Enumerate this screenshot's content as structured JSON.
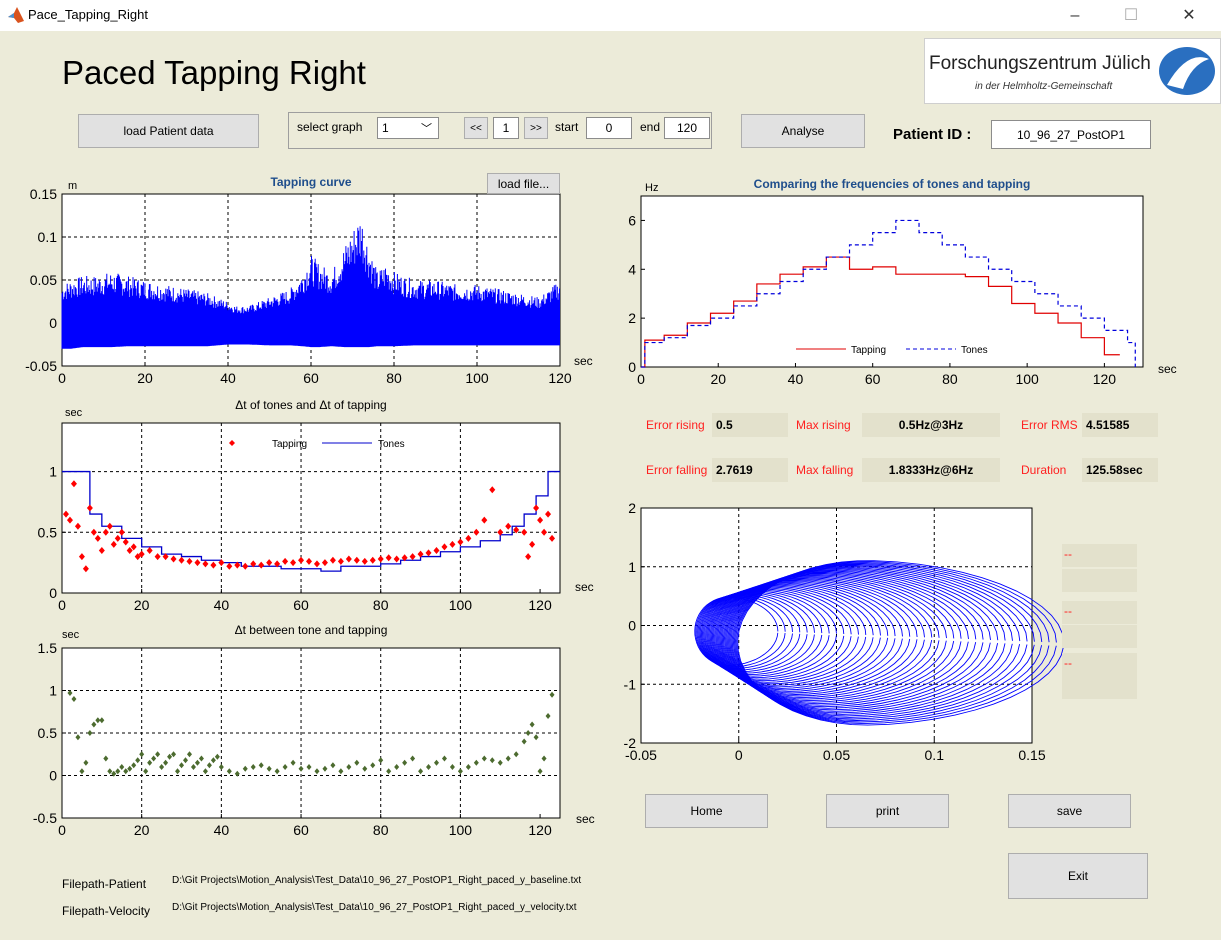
{
  "window": {
    "title": "Pace_Tapping_Right",
    "minimize": "–",
    "maximize": "☐",
    "close": "✕"
  },
  "header": {
    "title": "Paced Tapping Right",
    "logo_line1": "Forschungszentrum Jülich",
    "logo_line2": "in der Helmholtz-Gemeinschaft"
  },
  "toolbar": {
    "load_patient": "load Patient data",
    "select_graph_label": "select graph",
    "select_graph_value": "1",
    "prev": "<<",
    "page": "1",
    "next": ">>",
    "start_label": "start",
    "start_value": "0",
    "end_label": "end",
    "end_value": "120",
    "analyse": "Analyse",
    "patient_id_label": "Patient  ID :",
    "patient_id_value": "10_96_27_PostOP1"
  },
  "stats": {
    "error_rising_label": "Error rising",
    "error_rising_value": "0.5",
    "max_rising_label": "Max rising",
    "max_rising_value": "0.5Hz@3Hz",
    "error_rms_label": "Error RMS",
    "error_rms_value": "4.51585",
    "error_falling_label": "Error falling",
    "error_falling_value": "2.7619",
    "max_falling_label": "Max falling",
    "max_falling_value": "1.8333Hz@6Hz",
    "duration_label": "Duration",
    "duration_value": "125.58sec",
    "dash1": "--",
    "dash2": "--",
    "dash3": "--"
  },
  "buttons": {
    "home": "Home",
    "print": "print",
    "save": "save",
    "exit": "Exit",
    "load_file": "load file..."
  },
  "filepaths": {
    "patient_label": "Filepath-Patient",
    "patient_value": "D:\\Git Projects\\Motion_Analysis\\Test_Data\\10_96_27_PostOP1_Right_paced_y_baseline.txt",
    "velocity_label": "Filepath-Velocity",
    "velocity_value": "D:\\Git Projects\\Motion_Analysis\\Test_Data\\10_96_27_PostOP1_Right_paced_y_velocity.txt"
  },
  "chart_data": [
    {
      "type": "line",
      "title": "Tapping curve",
      "ylabel": "m",
      "xlabel": "sec",
      "xlim": [
        0,
        120
      ],
      "ylim": [
        -0.05,
        0.15
      ],
      "xticks": [
        "0",
        "20",
        "40",
        "60",
        "80",
        "100",
        "120"
      ],
      "yticks": [
        "-0.05",
        "0",
        "0.05",
        "0.1",
        "0.15"
      ],
      "grid": true,
      "color": "#0000ff",
      "envelope": {
        "x": [
          0,
          2,
          5,
          8,
          12,
          16,
          20,
          25,
          30,
          35,
          40,
          42,
          45,
          50,
          55,
          58,
          60,
          62,
          65,
          68,
          70,
          72,
          74,
          76,
          78,
          80,
          85,
          90,
          95,
          100,
          105,
          110,
          115,
          120
        ],
        "upper": [
          0.045,
          0.05,
          0.055,
          0.055,
          0.06,
          0.055,
          0.05,
          0.045,
          0.04,
          0.035,
          0.025,
          0.02,
          0.02,
          0.03,
          0.04,
          0.06,
          0.08,
          0.07,
          0.06,
          0.09,
          0.11,
          0.13,
          0.09,
          0.06,
          0.07,
          0.06,
          0.05,
          0.05,
          0.045,
          0.045,
          0.04,
          0.035,
          0.03,
          0.05
        ],
        "lower": [
          -0.03,
          -0.03,
          -0.028,
          -0.028,
          -0.028,
          -0.027,
          -0.027,
          -0.027,
          -0.027,
          -0.027,
          -0.025,
          -0.025,
          -0.025,
          -0.026,
          -0.026,
          -0.027,
          -0.028,
          -0.028,
          -0.027,
          -0.028,
          -0.028,
          -0.028,
          -0.028,
          -0.027,
          -0.027,
          -0.027,
          -0.026,
          -0.026,
          -0.026,
          -0.026,
          -0.026,
          -0.026,
          -0.026,
          -0.026
        ]
      }
    },
    {
      "type": "line",
      "title": "Comparing the frequencies of tones and tapping",
      "ylabel": "Hz",
      "xlabel": "sec",
      "xlim": [
        0,
        130
      ],
      "ylim": [
        0,
        7
      ],
      "xticks": [
        "0",
        "20",
        "40",
        "60",
        "80",
        "100",
        "120"
      ],
      "yticks": [
        "0",
        "2",
        "4",
        "6"
      ],
      "grid": false,
      "legend": "bottom-center",
      "series": [
        {
          "name": "Tapping",
          "color": "#e00000",
          "style": "solid",
          "x": [
            0,
            1,
            6,
            12,
            18,
            24,
            30,
            36,
            42,
            48,
            54,
            60,
            66,
            72,
            78,
            84,
            90,
            96,
            102,
            108,
            114,
            120,
            124
          ],
          "y": [
            0,
            1.1,
            1.3,
            1.8,
            2.2,
            2.7,
            3.4,
            3.8,
            4.1,
            4.5,
            4.0,
            4.1,
            3.8,
            3.8,
            3.8,
            3.7,
            3.3,
            2.6,
            2.2,
            1.8,
            1.2,
            0.5,
            0.5
          ]
        },
        {
          "name": "Tones",
          "color": "#0000dd",
          "style": "dashed",
          "x": [
            0,
            1,
            6,
            12,
            18,
            24,
            30,
            36,
            42,
            48,
            54,
            60,
            66,
            72,
            78,
            84,
            90,
            96,
            102,
            108,
            114,
            120,
            126,
            128
          ],
          "y": [
            0,
            1.0,
            1.2,
            1.7,
            2.0,
            2.5,
            3.0,
            3.5,
            4.0,
            4.5,
            5.0,
            5.5,
            6.0,
            5.5,
            5.0,
            4.5,
            4.0,
            3.5,
            3.0,
            2.5,
            2.0,
            1.5,
            1.0,
            0
          ]
        }
      ]
    },
    {
      "type": "scatter",
      "title": "Δt of tones and Δt of tapping",
      "ylabel": "sec",
      "xlabel": "sec",
      "xlim": [
        0,
        125
      ],
      "ylim": [
        0,
        1.4
      ],
      "xticks": [
        "0",
        "20",
        "40",
        "60",
        "80",
        "100",
        "120"
      ],
      "yticks": [
        "0",
        "0.5",
        "1"
      ],
      "grid": true,
      "legend": "top-center",
      "series": [
        {
          "name": "Tapping",
          "color": "#ff0000",
          "marker": "diamond",
          "x": [
            1,
            2,
            3,
            4,
            5,
            6,
            7,
            8,
            9,
            10,
            11,
            12,
            13,
            14,
            15,
            16,
            17,
            18,
            19,
            20,
            22,
            24,
            26,
            28,
            30,
            32,
            34,
            36,
            38,
            40,
            42,
            44,
            46,
            48,
            50,
            52,
            54,
            56,
            58,
            60,
            62,
            64,
            66,
            68,
            70,
            72,
            74,
            76,
            78,
            80,
            82,
            84,
            86,
            88,
            90,
            92,
            94,
            96,
            98,
            100,
            102,
            104,
            106,
            108,
            110,
            112,
            114,
            116,
            117,
            118,
            119,
            120,
            121,
            122,
            123
          ],
          "y": [
            0.65,
            0.6,
            0.9,
            0.55,
            0.3,
            0.2,
            0.7,
            0.5,
            0.45,
            0.35,
            0.5,
            0.55,
            0.4,
            0.45,
            0.5,
            0.42,
            0.35,
            0.38,
            0.3,
            0.32,
            0.35,
            0.3,
            0.3,
            0.28,
            0.27,
            0.26,
            0.25,
            0.24,
            0.23,
            0.25,
            0.22,
            0.23,
            0.22,
            0.24,
            0.23,
            0.25,
            0.24,
            0.26,
            0.25,
            0.27,
            0.26,
            0.24,
            0.25,
            0.27,
            0.26,
            0.28,
            0.27,
            0.26,
            0.27,
            0.28,
            0.29,
            0.28,
            0.29,
            0.3,
            0.32,
            0.33,
            0.35,
            0.38,
            0.4,
            0.42,
            0.45,
            0.5,
            0.6,
            0.85,
            0.5,
            0.55,
            0.52,
            0.5,
            0.3,
            0.4,
            0.7,
            0.6,
            0.5,
            0.65,
            0.45
          ]
        },
        {
          "name": "Tones",
          "color": "#0000cc",
          "style": "step",
          "x": [
            0,
            5,
            7,
            10,
            15,
            20,
            25,
            30,
            35,
            40,
            45,
            50,
            55,
            60,
            65,
            70,
            75,
            80,
            85,
            90,
            95,
            100,
            105,
            110,
            113,
            116,
            119,
            122,
            125
          ],
          "y": [
            1,
            1,
            0.65,
            0.55,
            0.45,
            0.38,
            0.32,
            0.3,
            0.27,
            0.25,
            0.22,
            0.22,
            0.2,
            0.2,
            0.18,
            0.22,
            0.22,
            0.24,
            0.27,
            0.3,
            0.34,
            0.38,
            0.43,
            0.48,
            0.55,
            0.65,
            0.8,
            1,
            1
          ]
        }
      ]
    },
    {
      "type": "scatter",
      "title": "Δt between tone and tapping",
      "ylabel": "sec",
      "xlabel": "sec",
      "xlim": [
        0,
        125
      ],
      "ylim": [
        -0.5,
        1.5
      ],
      "xticks": [
        "0",
        "20",
        "40",
        "60",
        "80",
        "100",
        "120"
      ],
      "yticks": [
        "-0.5",
        "0",
        "0.5",
        "1",
        "1.5"
      ],
      "grid": true,
      "color": "#4c6b2f",
      "series": [
        {
          "name": "",
          "marker": "diamond",
          "x": [
            2,
            3,
            4,
            5,
            6,
            7,
            8,
            9,
            10,
            11,
            12,
            13,
            14,
            15,
            16,
            17,
            18,
            19,
            20,
            21,
            22,
            23,
            24,
            25,
            26,
            27,
            28,
            29,
            30,
            31,
            32,
            33,
            34,
            35,
            36,
            37,
            38,
            39,
            40,
            42,
            44,
            46,
            48,
            50,
            52,
            54,
            56,
            58,
            60,
            62,
            64,
            66,
            68,
            70,
            72,
            74,
            76,
            78,
            80,
            82,
            84,
            86,
            88,
            90,
            92,
            94,
            96,
            98,
            100,
            102,
            104,
            106,
            108,
            110,
            112,
            114,
            116,
            117,
            118,
            119,
            120,
            121,
            122,
            123
          ],
          "y": [
            0.97,
            0.9,
            0.45,
            0.05,
            0.15,
            0.5,
            0.6,
            0.65,
            0.65,
            0.2,
            0.05,
            0.02,
            0.05,
            0.1,
            0.05,
            0.08,
            0.12,
            0.18,
            0.25,
            0.05,
            0.15,
            0.2,
            0.25,
            0.1,
            0.15,
            0.22,
            0.25,
            0.05,
            0.12,
            0.18,
            0.25,
            0.1,
            0.15,
            0.2,
            0.05,
            0.12,
            0.18,
            0.22,
            0.1,
            0.05,
            0.02,
            0.08,
            0.1,
            0.12,
            0.08,
            0.05,
            0.1,
            0.15,
            0.08,
            0.1,
            0.05,
            0.08,
            0.12,
            0.05,
            0.1,
            0.15,
            0.08,
            0.12,
            0.18,
            0.05,
            0.1,
            0.15,
            0.2,
            0.05,
            0.1,
            0.15,
            0.2,
            0.1,
            0.05,
            0.1,
            0.15,
            0.2,
            0.18,
            0.15,
            0.2,
            0.25,
            0.4,
            0.5,
            0.6,
            0.45,
            0.05,
            0.2,
            0.7,
            0.95
          ]
        }
      ]
    },
    {
      "type": "line",
      "title": "",
      "xlim": [
        -0.05,
        0.15
      ],
      "ylim": [
        -2,
        2
      ],
      "xticks": [
        "-0.05",
        "0",
        "0.05",
        "0.1",
        "0.15"
      ],
      "yticks": [
        "-2",
        "-1",
        "0",
        "1",
        "2"
      ],
      "grid": true,
      "color": "#0000ff",
      "phase_loops": {
        "count": 40,
        "center_x": 0.02,
        "center_y": -0.1,
        "x_left": -0.03
      }
    }
  ]
}
